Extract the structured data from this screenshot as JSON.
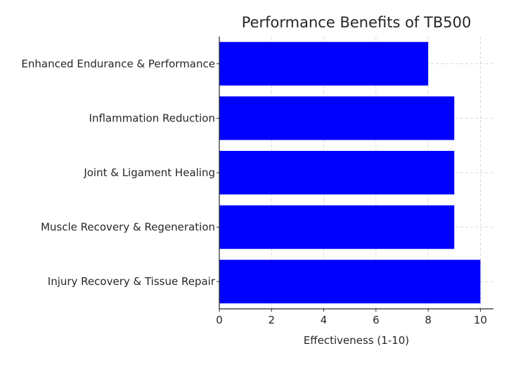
{
  "chart_data": {
    "type": "bar",
    "orientation": "horizontal",
    "title": "Performance Benefits of TB500",
    "xlabel": "Effectiveness (1-10)",
    "ylabel": "",
    "xlim": [
      0,
      10.5
    ],
    "xticks": [
      0,
      2,
      4,
      6,
      8,
      10
    ],
    "grid": true,
    "bar_color": "#0000ff",
    "categories": [
      "Injury Recovery & Tissue Repair",
      "Muscle Recovery & Regeneration",
      "Joint & Ligament Healing",
      "Inflammation Reduction",
      "Enhanced Endurance & Performance"
    ],
    "values": [
      10,
      9,
      9,
      9,
      8
    ]
  }
}
